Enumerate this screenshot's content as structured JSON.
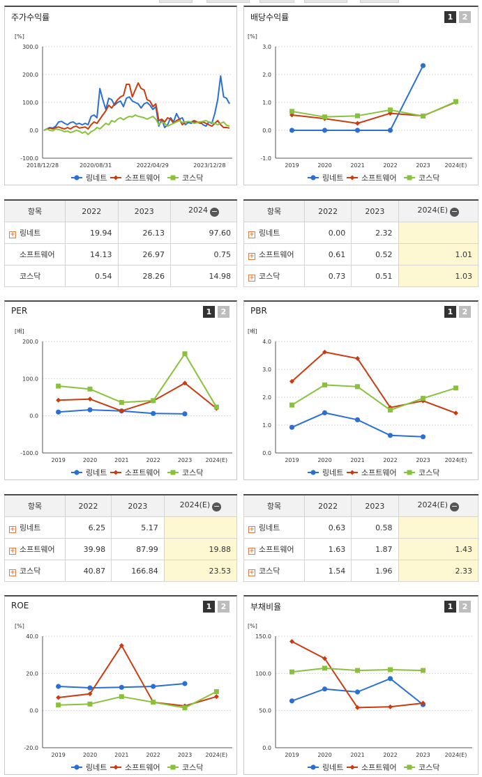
{
  "colors": {
    "series1": "#2a6fd6",
    "series2": "#cc3a0e",
    "series3": "#88c23a"
  },
  "legend": [
    "링네트",
    "소프트웨어",
    "코스닥"
  ],
  "page_buttons": [
    "1",
    "2"
  ],
  "panels": {
    "stock": {
      "title": "주가수익률"
    },
    "dividend": {
      "title": "배당수익률"
    },
    "per": {
      "title": "PER"
    },
    "pbr": {
      "title": "PBR"
    },
    "roe": {
      "title": "ROE"
    },
    "debt": {
      "title": "부채비율"
    }
  },
  "tables": {
    "stock": {
      "header": [
        "항목",
        "2022",
        "2023",
        "2024"
      ],
      "rows": [
        {
          "name": "링네트",
          "plus": true,
          "values": [
            "19.94",
            "26.13",
            "97.60"
          ]
        },
        {
          "name": "소프트웨어",
          "plus": false,
          "values": [
            "14.13",
            "26.97",
            "0.75"
          ]
        },
        {
          "name": "코스닥",
          "plus": false,
          "values": [
            "0.54",
            "28.26",
            "14.98"
          ]
        }
      ]
    },
    "dividend": {
      "header": [
        "항목",
        "2022",
        "2023",
        "2024(E)"
      ],
      "rows": [
        {
          "name": "링네트",
          "plus": true,
          "values": [
            "0.00",
            "2.32",
            ""
          ]
        },
        {
          "name": "소프트웨어",
          "plus": true,
          "values": [
            "0.61",
            "0.52",
            "1.01"
          ]
        },
        {
          "name": "코스닥",
          "plus": true,
          "values": [
            "0.73",
            "0.51",
            "1.03"
          ]
        }
      ]
    },
    "per": {
      "header": [
        "항목",
        "2022",
        "2023",
        "2024(E)"
      ],
      "rows": [
        {
          "name": "링네트",
          "plus": true,
          "values": [
            "6.25",
            "5.17",
            ""
          ]
        },
        {
          "name": "소프트웨어",
          "plus": true,
          "values": [
            "39.98",
            "87.99",
            "19.88"
          ]
        },
        {
          "name": "코스닥",
          "plus": true,
          "values": [
            "40.87",
            "166.84",
            "23.53"
          ]
        }
      ]
    },
    "pbr": {
      "header": [
        "항목",
        "2022",
        "2023",
        "2024(E)"
      ],
      "rows": [
        {
          "name": "링네트",
          "plus": true,
          "values": [
            "0.63",
            "0.58",
            ""
          ]
        },
        {
          "name": "소프트웨어",
          "plus": true,
          "values": [
            "1.63",
            "1.87",
            "1.43"
          ]
        },
        {
          "name": "코스닥",
          "plus": true,
          "values": [
            "1.54",
            "1.96",
            "2.33"
          ]
        }
      ]
    }
  },
  "chart_data": [
    {
      "id": "stock",
      "type": "line",
      "title": "주가수익률",
      "unit": "[%]",
      "y_ticks": [
        "300.0",
        "200.0",
        "100.0",
        "0.0",
        "-100.0"
      ],
      "ylim": [
        -100,
        300
      ],
      "x_ticks": [
        "2018/12/28",
        "2020/08/31",
        "2022/04/29",
        "2023/12/28"
      ],
      "series": [
        {
          "name": "링네트",
          "values": [
            0,
            5,
            10,
            8,
            15,
            30,
            32,
            25,
            20,
            28,
            30,
            22,
            25,
            20,
            25,
            20,
            50,
            55,
            45,
            150,
            110,
            75,
            115,
            110,
            90,
            100,
            105,
            85,
            115,
            120,
            105,
            100,
            95,
            80,
            95,
            100,
            90,
            75,
            85,
            15,
            40,
            10,
            20,
            45,
            30,
            60,
            40,
            45,
            20,
            28,
            25,
            30,
            28,
            30,
            20,
            15,
            30,
            25,
            60,
            110,
            195,
            120,
            115,
            95
          ]
        },
        {
          "name": "소프트웨어",
          "values": [
            0,
            5,
            8,
            5,
            10,
            12,
            8,
            5,
            10,
            5,
            12,
            15,
            8,
            10,
            12,
            5,
            20,
            30,
            25,
            40,
            55,
            70,
            90,
            80,
            95,
            110,
            120,
            125,
            165,
            165,
            120,
            145,
            170,
            150,
            145,
            110,
            105,
            85,
            95,
            35,
            40,
            30,
            45,
            40,
            25,
            35,
            40,
            20,
            30,
            30,
            30,
            35,
            30,
            25,
            30,
            25,
            20,
            15,
            25,
            35,
            20,
            10,
            10,
            8
          ]
        },
        {
          "name": "코스닥",
          "values": [
            0,
            5,
            0,
            -2,
            5,
            3,
            0,
            -5,
            -3,
            -8,
            -5,
            0,
            -3,
            -10,
            -5,
            -15,
            -5,
            0,
            10,
            5,
            15,
            25,
            20,
            35,
            30,
            40,
            45,
            38,
            45,
            50,
            48,
            55,
            50,
            48,
            45,
            40,
            45,
            50,
            40,
            20,
            30,
            25,
            15,
            20,
            25,
            30,
            35,
            28,
            30,
            32,
            30,
            25,
            28,
            30,
            32,
            35,
            30,
            28,
            25,
            20,
            25,
            30,
            18,
            15
          ]
        }
      ]
    },
    {
      "id": "dividend",
      "type": "line",
      "title": "배당수익률",
      "unit": "[%]",
      "y_ticks": [
        "3.0",
        "2.0",
        "1.0",
        "0.0",
        "-1.0"
      ],
      "ylim": [
        -1,
        3
      ],
      "categories": [
        "2019",
        "2020",
        "2021",
        "2022",
        "2023",
        "2024(E)"
      ],
      "series": [
        {
          "name": "링네트",
          "values": [
            0.0,
            0.0,
            0.0,
            0.0,
            2.32,
            null
          ]
        },
        {
          "name": "소프트웨어",
          "values": [
            0.55,
            0.42,
            0.25,
            0.61,
            0.52,
            1.01
          ]
        },
        {
          "name": "코스닥",
          "values": [
            0.68,
            0.48,
            0.52,
            0.73,
            0.51,
            1.03
          ]
        }
      ]
    },
    {
      "id": "per",
      "type": "line",
      "title": "PER",
      "unit": "[배]",
      "y_ticks": [
        "200.0",
        "100.0",
        "0.0",
        "-100.0"
      ],
      "ylim": [
        -100,
        200
      ],
      "categories": [
        "2019",
        "2020",
        "2021",
        "2022",
        "2023",
        "2024(E)"
      ],
      "series": [
        {
          "name": "링네트",
          "values": [
            10,
            16,
            13,
            6.25,
            5.17,
            null
          ]
        },
        {
          "name": "소프트웨어",
          "values": [
            42,
            45,
            13,
            39.98,
            87.99,
            19.88
          ]
        },
        {
          "name": "코스닥",
          "values": [
            80,
            72,
            36,
            40.87,
            166.84,
            23.53
          ]
        }
      ]
    },
    {
      "id": "pbr",
      "type": "line",
      "title": "PBR",
      "unit": "[배]",
      "y_ticks": [
        "4.0",
        "3.0",
        "2.0",
        "1.0",
        "0.0"
      ],
      "ylim": [
        0,
        4
      ],
      "categories": [
        "2019",
        "2020",
        "2021",
        "2022",
        "2023",
        "2024(E)"
      ],
      "series": [
        {
          "name": "링네트",
          "values": [
            0.92,
            1.44,
            1.19,
            0.63,
            0.58,
            null
          ]
        },
        {
          "name": "소프트웨어",
          "values": [
            2.57,
            3.62,
            3.39,
            1.63,
            1.87,
            1.43
          ]
        },
        {
          "name": "코스닥",
          "values": [
            1.72,
            2.44,
            2.38,
            1.54,
            1.96,
            2.33
          ]
        }
      ]
    },
    {
      "id": "roe",
      "type": "line",
      "title": "ROE",
      "unit": "[%]",
      "y_ticks": [
        "40.0",
        "20.0",
        "0.0",
        "-20.0"
      ],
      "ylim": [
        -20,
        40
      ],
      "categories": [
        "2019",
        "2020",
        "2021",
        "2022",
        "2023",
        "2024(E)"
      ],
      "series": [
        {
          "name": "링네트",
          "values": [
            13,
            12.2,
            12.5,
            13,
            14.5,
            null
          ]
        },
        {
          "name": "소프트웨어",
          "values": [
            7,
            9,
            35,
            4.5,
            2.5,
            7.5
          ]
        },
        {
          "name": "코스닥",
          "values": [
            3,
            3.5,
            7.5,
            4.5,
            1.5,
            10.2
          ]
        }
      ]
    },
    {
      "id": "debt",
      "type": "line",
      "title": "부채비율",
      "unit": "[%]",
      "y_ticks": [
        "150.0",
        "100.0",
        "50.0",
        "0.0"
      ],
      "ylim": [
        0,
        150
      ],
      "categories": [
        "2019",
        "2020",
        "2021",
        "2022",
        "2023",
        "2024(E)"
      ],
      "series": [
        {
          "name": "링네트",
          "values": [
            63,
            79,
            75,
            93,
            58,
            null
          ]
        },
        {
          "name": "소프트웨어",
          "values": [
            143,
            120,
            54,
            55,
            60,
            null
          ]
        },
        {
          "name": "코스닥",
          "values": [
            102,
            107,
            104,
            105,
            104,
            null
          ]
        }
      ]
    }
  ]
}
